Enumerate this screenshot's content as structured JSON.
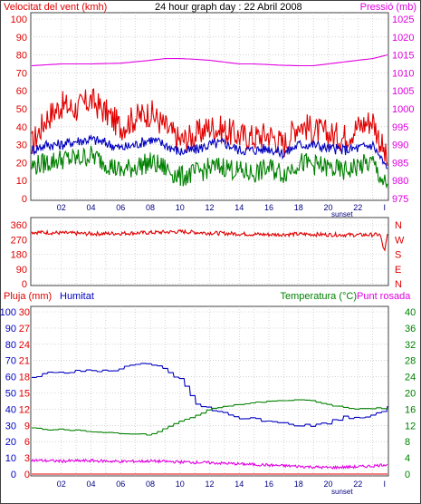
{
  "chart_data": [
    {
      "type": "line",
      "title": "24 hour graph day : 22 Abril 2008",
      "left_axis_label": "Velocitat del vent (kmh)",
      "right_axis_label": "Pressió (mb)",
      "x_ticks": [
        "02",
        "04",
        "06",
        "08",
        "10",
        "12",
        "14",
        "16",
        "18",
        "20",
        "22",
        "I"
      ],
      "x_annotation": "sunset",
      "left_axis": {
        "min": 0,
        "max": 100,
        "ticks": [
          0,
          10,
          20,
          30,
          40,
          50,
          60,
          70,
          80,
          90,
          100
        ]
      },
      "right_axis": {
        "min": 975,
        "max": 1025,
        "ticks": [
          975,
          980,
          985,
          990,
          995,
          1000,
          1005,
          1010,
          1015,
          1020,
          1025
        ]
      },
      "series": [
        {
          "name": "Velocitat del vent (kmh)",
          "color": "#e00000",
          "axis": "left",
          "kind": "noisy",
          "x": [
            0,
            1,
            2,
            3,
            4,
            5,
            6,
            7,
            8,
            9,
            10,
            11,
            12,
            13,
            14,
            15,
            16,
            17,
            18,
            19,
            20,
            21,
            22,
            23,
            24
          ],
          "values": [
            30,
            45,
            52,
            50,
            55,
            48,
            40,
            45,
            48,
            40,
            32,
            35,
            40,
            38,
            35,
            34,
            36,
            30,
            42,
            38,
            36,
            34,
            40,
            44,
            20
          ],
          "amplitude": 8
        },
        {
          "color": "#0000c0",
          "axis": "left",
          "kind": "noisy",
          "x": [
            0,
            1,
            2,
            3,
            4,
            5,
            6,
            7,
            8,
            9,
            10,
            11,
            12,
            13,
            14,
            15,
            16,
            17,
            18,
            19,
            20,
            21,
            22,
            23,
            24
          ],
          "values": [
            27,
            30,
            30,
            32,
            33,
            31,
            28,
            30,
            33,
            30,
            26,
            27,
            30,
            31,
            27,
            27,
            28,
            25,
            30,
            30,
            28,
            27,
            28,
            30,
            16
          ],
          "amplitude": 3
        },
        {
          "color": "#008000",
          "axis": "left",
          "kind": "noisy",
          "x": [
            0,
            1,
            2,
            3,
            4,
            5,
            6,
            7,
            8,
            9,
            10,
            11,
            12,
            13,
            14,
            15,
            16,
            17,
            18,
            19,
            20,
            21,
            22,
            23,
            24
          ],
          "values": [
            18,
            20,
            22,
            22,
            24,
            20,
            15,
            18,
            20,
            17,
            12,
            14,
            17,
            18,
            15,
            14,
            17,
            14,
            20,
            19,
            17,
            15,
            18,
            20,
            5
          ],
          "amplitude": 6
        },
        {
          "name": "Pressió (mb)",
          "color": "#e000e0",
          "axis": "right",
          "kind": "smooth",
          "x": [
            0,
            2,
            4,
            6,
            8,
            9,
            10,
            11,
            12,
            13,
            14,
            15,
            16,
            17,
            18,
            19,
            20,
            21,
            22,
            23,
            24
          ],
          "values": [
            1012,
            1012.5,
            1012.5,
            1012.7,
            1013.5,
            1014,
            1014,
            1013.8,
            1013.5,
            1013,
            1012.5,
            1012.5,
            1012.3,
            1012.1,
            1012,
            1012,
            1012.5,
            1013,
            1013.5,
            1014,
            1015
          ]
        }
      ]
    },
    {
      "type": "scatter",
      "left_axis": {
        "min": 0,
        "max": 360,
        "ticks": [
          0,
          90,
          180,
          270,
          360
        ]
      },
      "right_axis_labels": [
        "N",
        "W",
        "S",
        "E",
        "N"
      ],
      "series": [
        {
          "color": "#e00000",
          "kind": "noisy",
          "x": [
            0,
            2,
            4,
            6,
            8,
            10,
            12,
            14,
            16,
            18,
            20,
            22,
            23.5,
            23.8,
            24
          ],
          "values": [
            315,
            310,
            305,
            308,
            312,
            318,
            310,
            305,
            300,
            303,
            300,
            298,
            300,
            190,
            300
          ],
          "amplitude": 12
        }
      ]
    },
    {
      "type": "line",
      "left_axis_label": "Pluja (mm)",
      "left_axis_label2": "Humitat",
      "right_axis_label": "Temperatura (°C)",
      "right_axis_label2": "Punt rosada",
      "x_ticks": [
        "02",
        "04",
        "06",
        "08",
        "10",
        "12",
        "14",
        "16",
        "18",
        "20",
        "22",
        "I"
      ],
      "x_annotation": "sunset",
      "humidity_axis": {
        "min": 0,
        "max": 100,
        "ticks": [
          0,
          10,
          20,
          30,
          40,
          50,
          60,
          70,
          80,
          90,
          100
        ]
      },
      "rain_axis": {
        "min": 0,
        "max": 30,
        "ticks": [
          0,
          3,
          6,
          9,
          12,
          15,
          18,
          21,
          24,
          27,
          30
        ]
      },
      "temp_axis": {
        "min": 0,
        "max": 40,
        "ticks": [
          0,
          4,
          8,
          12,
          16,
          20,
          24,
          28,
          32,
          36,
          40
        ]
      },
      "series": [
        {
          "name": "Humitat",
          "color": "#0000c0",
          "axis": "humidity",
          "kind": "steppy",
          "x": [
            0,
            1,
            2,
            3,
            4,
            5,
            6,
            7,
            8,
            8.5,
            9,
            10,
            10.5,
            11,
            12,
            13,
            14,
            16,
            17,
            18,
            19,
            20,
            21,
            22,
            23,
            24
          ],
          "values": [
            60,
            62,
            62,
            63,
            64,
            63,
            65,
            67,
            68,
            66,
            64,
            58,
            52,
            44,
            40,
            37,
            35,
            33,
            32,
            30,
            30,
            32,
            35,
            35,
            37,
            41
          ],
          "amplitude": 1
        },
        {
          "name": "Temperatura (°C)",
          "color": "#008000",
          "axis": "temp",
          "kind": "steppy",
          "x": [
            0,
            1,
            2,
            3,
            4,
            5,
            6,
            7,
            8,
            8.5,
            9,
            10,
            11,
            12,
            13,
            14,
            15,
            16,
            17,
            18,
            19,
            20,
            21,
            22,
            23,
            24
          ],
          "values": [
            11.5,
            11,
            11,
            10.8,
            10.5,
            10.3,
            10,
            10,
            9.6,
            10.5,
            11.5,
            13,
            14.5,
            16,
            16.8,
            17.2,
            17.6,
            18,
            18,
            18.2,
            18,
            17,
            16.5,
            16,
            16.2,
            16.3
          ],
          "amplitude": 0.15
        },
        {
          "name": "Punt rosada",
          "color": "#e000e0",
          "axis": "temp",
          "kind": "noisy",
          "x": [
            0,
            2,
            4,
            6,
            8,
            10,
            12,
            14,
            16,
            18,
            20,
            22,
            23,
            24
          ],
          "values": [
            3.4,
            3.2,
            3.3,
            3.1,
            3.2,
            3,
            2.8,
            2.5,
            2.2,
            1.9,
            1.6,
            1.8,
            2,
            2.4
          ],
          "amplitude": 0.35
        },
        {
          "name": "Pluja (mm)",
          "color": "#e00000",
          "axis": "rain",
          "kind": "smooth",
          "x": [
            0,
            24
          ],
          "values": [
            0,
            0
          ]
        }
      ]
    }
  ]
}
